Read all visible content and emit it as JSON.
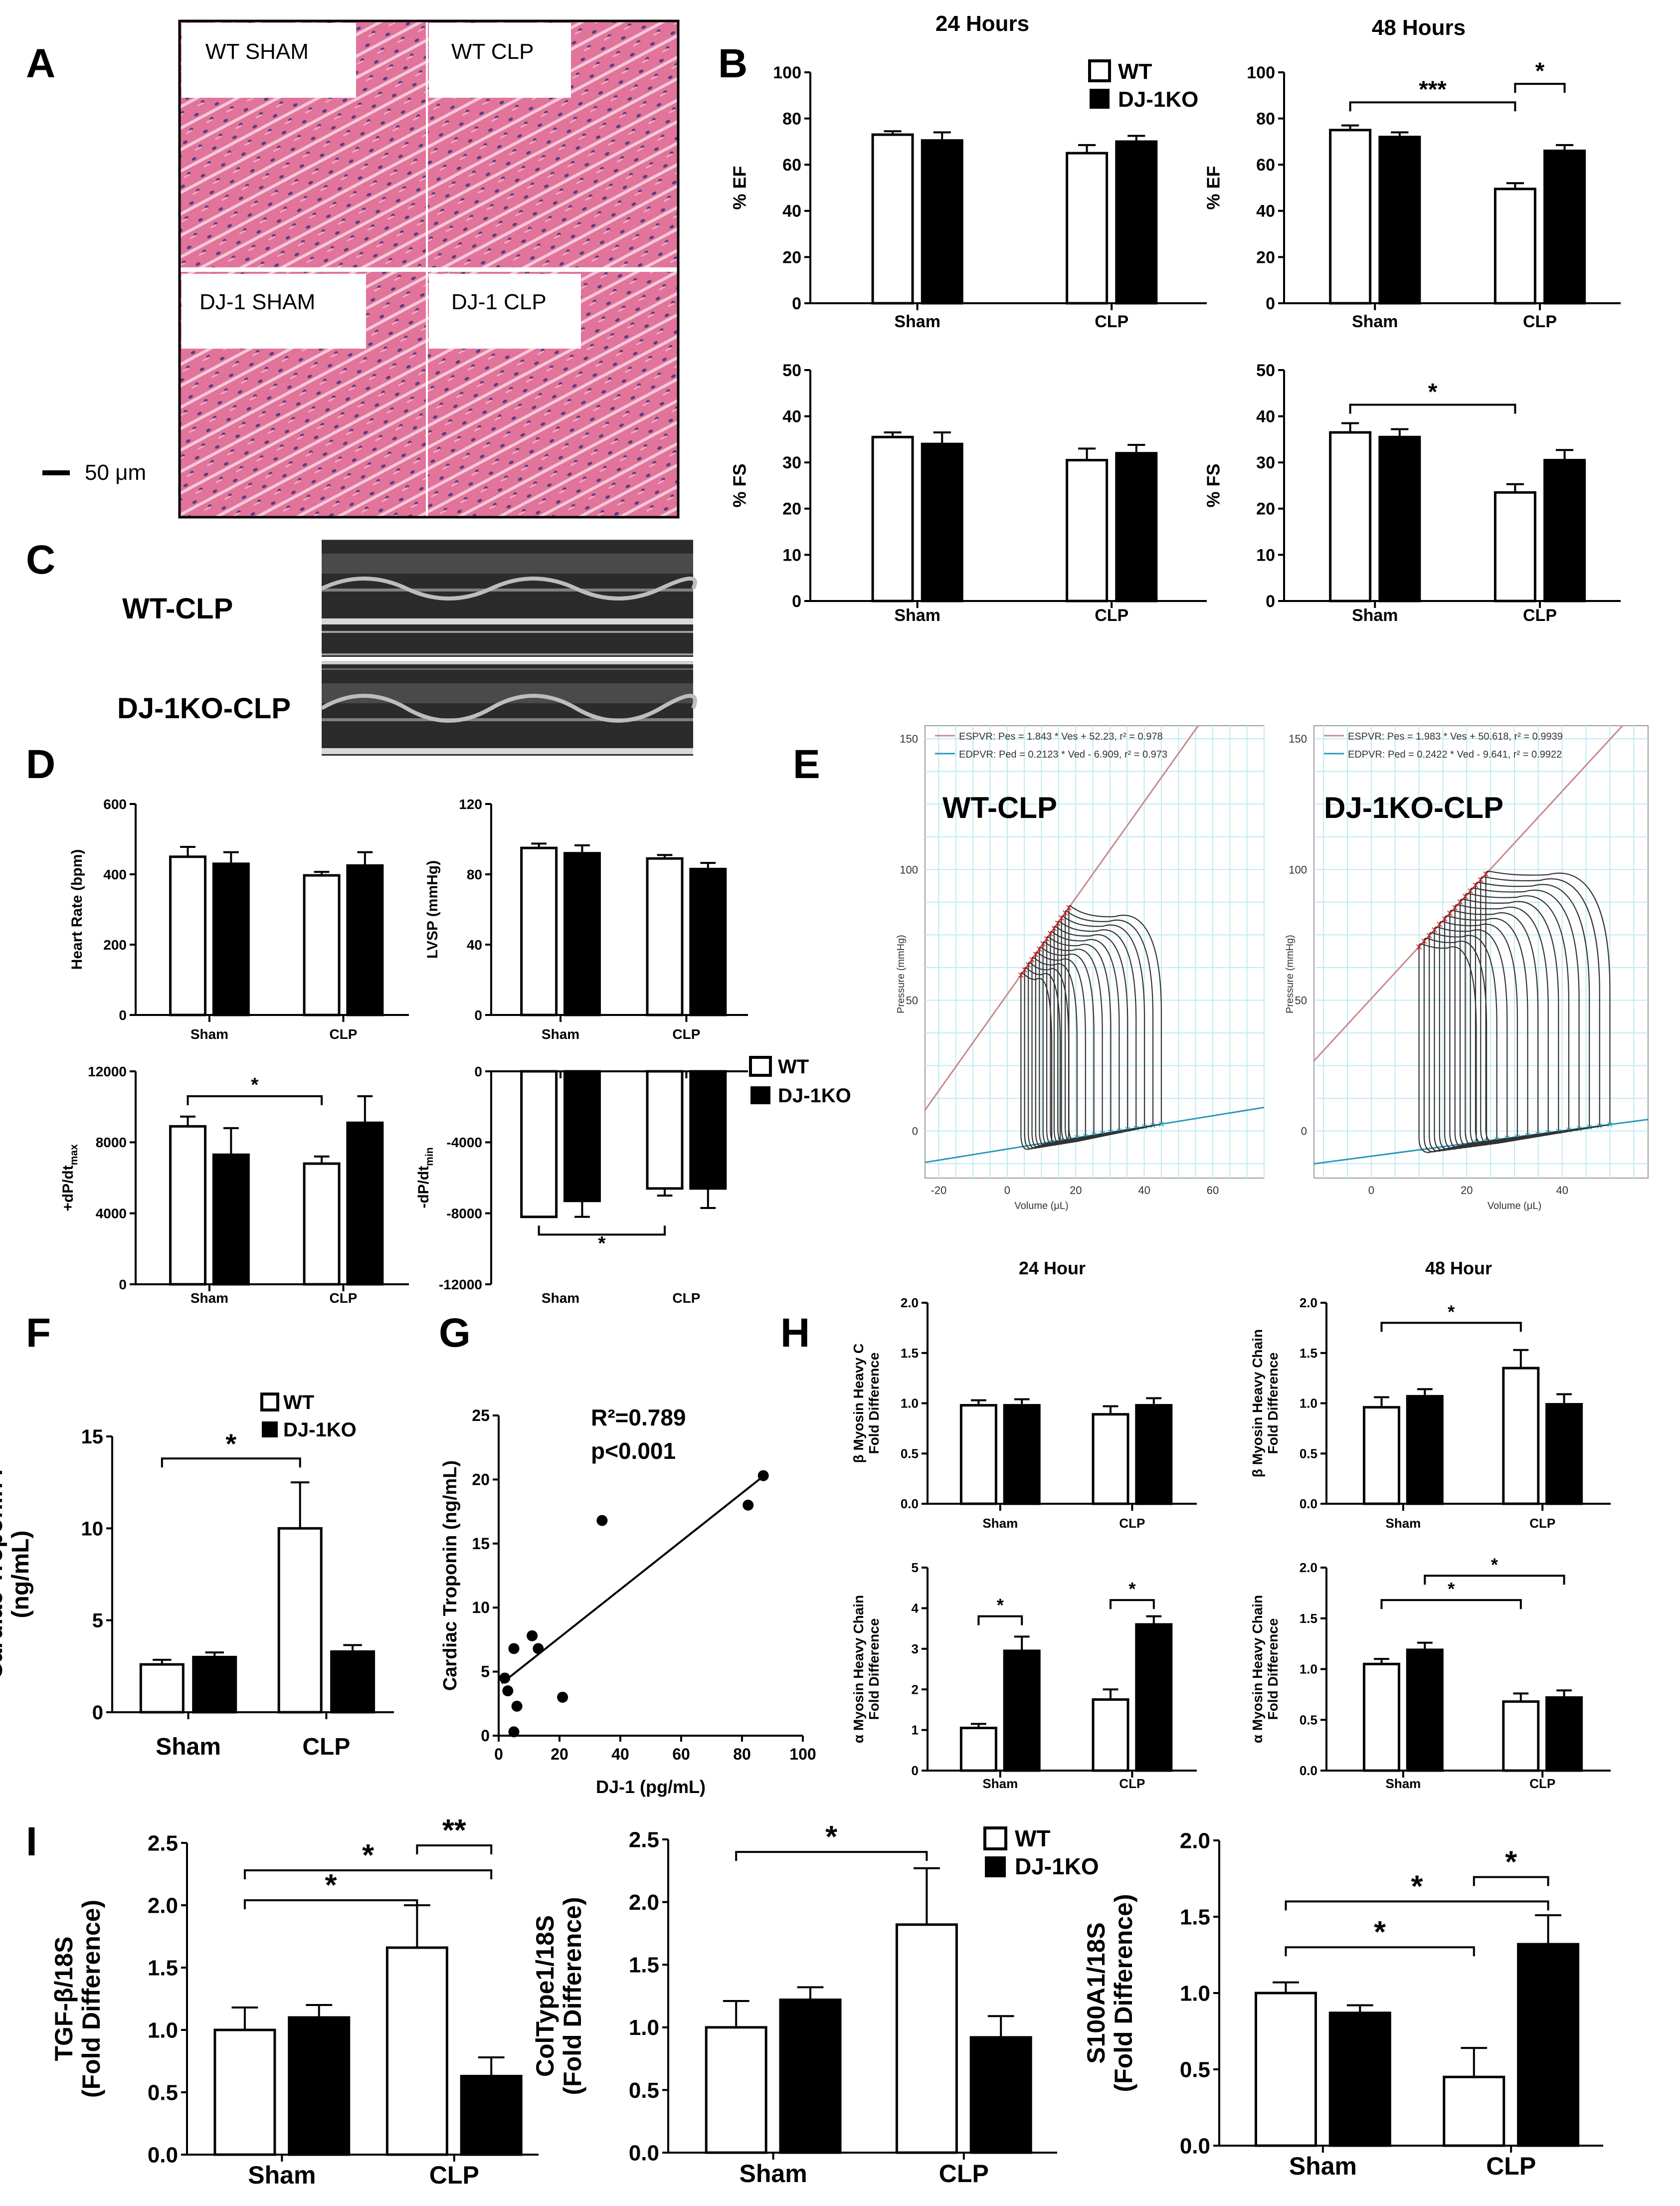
{
  "panel_letters": [
    "A",
    "B",
    "C",
    "D",
    "E",
    "F",
    "G",
    "H",
    "I"
  ],
  "colors": {
    "wt": "#ffffff",
    "ko": "#000000",
    "he_pink": "#e2739a",
    "he_light": "#f3c0d2",
    "nuclei": "#5a3d82",
    "echo_bg": "#2b2b2b",
    "grid": "#bfeaf2",
    "espvr": "#c9878f",
    "edpvr": "#2a97b9",
    "loop": "#333333",
    "esp_marker": "#e01818",
    "edp_marker": "#2fb3d6"
  },
  "legend": {
    "wt": "WT",
    "ko": "DJ-1KO"
  },
  "panel_a": {
    "labels": [
      "WT SHAM",
      "WT CLP",
      "DJ-1 SHAM",
      "DJ-1 CLP"
    ],
    "scale_bar": "50 μm"
  },
  "panel_c": {
    "labels": [
      "WT-CLP",
      "DJ-1KO-CLP"
    ]
  },
  "panel_e": {
    "y_label": "Pressure (mmHg)",
    "x_label": "Volume (μL)",
    "loops": [
      {
        "title": "WT-CLP",
        "espvr": "ESPVR: Pes = 1.843 * Ves + 52.23, r² = 0.978",
        "edpvr": "EDPVR: Ped = 0.2123 * Ved - 6.909, r² = 0.973",
        "ymin": -18,
        "ymax": 155,
        "yticks": [
          0,
          50,
          100,
          150
        ],
        "xmin": -24,
        "xmax": 75,
        "xticks": [
          -20,
          0,
          20,
          40,
          60
        ],
        "es_slope": 1.843,
        "es_int": 52.23,
        "ed_slope": 0.2123,
        "ed_int": -6.909,
        "ves_start": 4,
        "ves_end": 18,
        "ved_start": 13,
        "ved_end": 45,
        "peak_start": 58,
        "peak_end": 82,
        "n_loops": 14
      },
      {
        "title": "DJ-1KO-CLP",
        "espvr": "ESPVR: Pes = 1.983 * Ves + 50.618, r² = 0.9939",
        "edpvr": "EDPVR: Ped = 0.2422 * Ved - 9.641, r² = 0.9922",
        "ymin": -18,
        "ymax": 155,
        "yticks": [
          0,
          50,
          100,
          150
        ],
        "xmin": -12,
        "xmax": 58,
        "xticks": [
          0,
          20,
          40
        ],
        "es_slope": 1.983,
        "es_int": 50.618,
        "ed_slope": 0.2422,
        "ed_int": -9.641,
        "ves_start": 10,
        "ves_end": 24,
        "ved_start": 22,
        "ved_end": 50,
        "peak_start": 70,
        "peak_end": 98,
        "n_loops": 14
      }
    ]
  },
  "chart_data": [
    {
      "id": "B1",
      "type": "bar",
      "title": "24 Hours",
      "categories": [
        "Sham",
        "CLP"
      ],
      "ylabel": "% EF",
      "xlabel": "",
      "ylim": [
        0,
        100
      ],
      "yticks": [
        0,
        20,
        40,
        60,
        80,
        100
      ],
      "series": [
        {
          "name": "WT",
          "values": [
            73,
            65
          ],
          "err": [
            1.5,
            3.5
          ]
        },
        {
          "name": "DJ-1KO",
          "values": [
            70.5,
            70
          ],
          "err": [
            3.5,
            2.5
          ]
        }
      ],
      "sig": []
    },
    {
      "id": "B2",
      "type": "bar",
      "title": "48 Hours",
      "categories": [
        "Sham",
        "CLP"
      ],
      "ylabel": "% EF",
      "xlabel": "",
      "ylim": [
        0,
        100
      ],
      "yticks": [
        0,
        20,
        40,
        60,
        80,
        100
      ],
      "series": [
        {
          "name": "WT",
          "values": [
            75,
            49.5
          ],
          "err": [
            2,
            2.5
          ]
        },
        {
          "name": "DJ-1KO",
          "values": [
            72,
            66
          ],
          "err": [
            2,
            2.5
          ]
        }
      ],
      "sig": [
        {
          "from": [
            0,
            0
          ],
          "to": [
            1,
            0
          ],
          "y": 87,
          "label": "***"
        },
        {
          "from": [
            1,
            0
          ],
          "to": [
            1,
            1
          ],
          "y": 95,
          "label": "*"
        }
      ]
    },
    {
      "id": "B3",
      "type": "bar",
      "title": "",
      "categories": [
        "Sham",
        "CLP"
      ],
      "ylabel": "% FS",
      "xlabel": "",
      "ylim": [
        0,
        50
      ],
      "yticks": [
        0,
        10,
        20,
        30,
        40,
        50
      ],
      "series": [
        {
          "name": "WT",
          "values": [
            35.5,
            30.5
          ],
          "err": [
            1,
            2.5
          ]
        },
        {
          "name": "DJ-1KO",
          "values": [
            34,
            32
          ],
          "err": [
            2.5,
            1.8
          ]
        }
      ],
      "sig": []
    },
    {
      "id": "B4",
      "type": "bar",
      "title": "",
      "categories": [
        "Sham",
        "CLP"
      ],
      "ylabel": "% FS",
      "xlabel": "",
      "ylim": [
        0,
        50
      ],
      "yticks": [
        0,
        10,
        20,
        30,
        40,
        50
      ],
      "series": [
        {
          "name": "WT",
          "values": [
            36.5,
            23.5
          ],
          "err": [
            2,
            1.8
          ]
        },
        {
          "name": "DJ-1KO",
          "values": [
            35.5,
            30.5
          ],
          "err": [
            1.7,
            2.2
          ]
        }
      ],
      "sig": [
        {
          "from": [
            0,
            0
          ],
          "to": [
            1,
            0
          ],
          "y": 42.5,
          "label": "*"
        }
      ]
    },
    {
      "id": "D1",
      "type": "bar",
      "title": "",
      "categories": [
        "Sham",
        "CLP"
      ],
      "ylabel": "Heart Rate (bpm)",
      "xlabel": "",
      "ylim": [
        0,
        600
      ],
      "yticks": [
        0,
        200,
        400,
        600
      ],
      "series": [
        {
          "name": "WT",
          "values": [
            450,
            397
          ],
          "err": [
            28,
            10
          ]
        },
        {
          "name": "DJ-1KO",
          "values": [
            430,
            425
          ],
          "err": [
            33,
            38
          ]
        }
      ],
      "sig": []
    },
    {
      "id": "D2",
      "type": "bar",
      "title": "",
      "categories": [
        "Sham",
        "CLP"
      ],
      "ylabel": "LVSP (mmHg)",
      "xlabel": "",
      "ylim": [
        0,
        120
      ],
      "yticks": [
        0,
        40,
        80,
        120
      ],
      "series": [
        {
          "name": "WT",
          "values": [
            95,
            89
          ],
          "err": [
            2.5,
            2
          ]
        },
        {
          "name": "DJ-1KO",
          "values": [
            92,
            83
          ],
          "err": [
            4.5,
            3.5
          ]
        }
      ],
      "sig": []
    },
    {
      "id": "D3",
      "type": "bar",
      "title": "",
      "categories": [
        "Sham",
        "CLP"
      ],
      "ylabel": "+dP/dtmax",
      "xlabel": "",
      "ylim": [
        0,
        12000
      ],
      "yticks": [
        0,
        4000,
        8000,
        12000
      ],
      "series": [
        {
          "name": "WT",
          "values": [
            8900,
            6800
          ],
          "err": [
            550,
            400
          ]
        },
        {
          "name": "DJ-1KO",
          "values": [
            7300,
            9100
          ],
          "err": [
            1500,
            1500
          ]
        }
      ],
      "sig": [
        {
          "from": [
            0,
            0
          ],
          "to": [
            1,
            0
          ],
          "y": 10600,
          "label": "*"
        }
      ]
    },
    {
      "id": "D4",
      "type": "bar",
      "title": "",
      "categories": [
        "Sham",
        "CLP"
      ],
      "ylabel": "-dP/dtmin",
      "xlabel": "",
      "ylim": [
        -12000,
        0
      ],
      "yticks": [
        -12000,
        -8000,
        -4000,
        0
      ],
      "series": [
        {
          "name": "WT",
          "values": [
            -8200,
            -6600
          ],
          "err": [
            0,
            400
          ]
        },
        {
          "name": "DJ-1KO",
          "values": [
            -7300,
            -6600
          ],
          "err": [
            900,
            1100
          ]
        }
      ],
      "sig": [
        {
          "from": [
            0,
            0
          ],
          "to": [
            1,
            0
          ],
          "y": -9200,
          "label": "*",
          "below": true
        }
      ]
    },
    {
      "id": "F",
      "type": "bar",
      "title": "",
      "categories": [
        "Sham",
        "CLP"
      ],
      "ylabel": "Cardiac Troponin I (ng/mL)",
      "xlabel": "",
      "ylim": [
        0,
        15
      ],
      "yticks": [
        0,
        5,
        10,
        15
      ],
      "series": [
        {
          "name": "WT",
          "values": [
            2.6,
            10
          ],
          "err": [
            0.25,
            2.5
          ]
        },
        {
          "name": "DJ-1KO",
          "values": [
            3,
            3.3
          ],
          "err": [
            0.25,
            0.35
          ]
        }
      ],
      "sig": [
        {
          "from": [
            0,
            0
          ],
          "to": [
            1,
            0
          ],
          "y": 13.8,
          "label": "*"
        }
      ]
    },
    {
      "id": "G",
      "type": "scatter",
      "title": "",
      "xlabel": "DJ-1 (pg/mL)",
      "ylabel": "Cardiac Troponin (ng/mL)",
      "xlim": [
        0,
        100
      ],
      "ylim": [
        0,
        25
      ],
      "xticks": [
        0,
        20,
        40,
        60,
        80,
        100
      ],
      "yticks": [
        0,
        5,
        10,
        15,
        20,
        25
      ],
      "points": [
        [
          2,
          4.5
        ],
        [
          3,
          3.5
        ],
        [
          5,
          6.8
        ],
        [
          5,
          0.3
        ],
        [
          6,
          2.3
        ],
        [
          11,
          7.8
        ],
        [
          13,
          6.8
        ],
        [
          21,
          3
        ],
        [
          34,
          16.8
        ],
        [
          82,
          18
        ],
        [
          87,
          20.3
        ]
      ],
      "fit": {
        "slope": 0.188,
        "intercept": 3.9,
        "x0": 1,
        "x1": 87
      },
      "annotation": [
        "R²=0.789",
        "p<0.001"
      ]
    },
    {
      "id": "H1",
      "type": "bar",
      "title": "24 Hour",
      "categories": [
        "Sham",
        "CLP"
      ],
      "ylabel": "β Myosin Heavy C Fold Difference",
      "xlabel": "",
      "ylim": [
        0,
        2
      ],
      "yticks": [
        0,
        0.5,
        1,
        1.5,
        2
      ],
      "series": [
        {
          "name": "WT",
          "values": [
            0.98,
            0.89
          ],
          "err": [
            0.05,
            0.08
          ]
        },
        {
          "name": "DJ-1KO",
          "values": [
            0.98,
            0.98
          ],
          "err": [
            0.06,
            0.07
          ]
        }
      ],
      "sig": []
    },
    {
      "id": "H2",
      "type": "bar",
      "title": "48 Hour",
      "categories": [
        "Sham",
        "CLP"
      ],
      "ylabel": "β Myosin Heavy Chain Fold Difference",
      "xlabel": "",
      "ylim": [
        0,
        2
      ],
      "yticks": [
        0,
        0.5,
        1,
        1.5,
        2
      ],
      "series": [
        {
          "name": "WT",
          "values": [
            0.96,
            1.35
          ],
          "err": [
            0.1,
            0.18
          ]
        },
        {
          "name": "DJ-1KO",
          "values": [
            1.07,
            0.99
          ],
          "err": [
            0.07,
            0.1
          ]
        }
      ],
      "sig": [
        {
          "from": [
            0,
            0
          ],
          "to": [
            1,
            0
          ],
          "y": 1.8,
          "label": "*"
        }
      ]
    },
    {
      "id": "H3",
      "type": "bar",
      "title": "",
      "categories": [
        "Sham",
        "CLP"
      ],
      "ylabel": "α Myosin Heavy Chain Fold Difference",
      "xlabel": "",
      "ylim": [
        0,
        5
      ],
      "yticks": [
        0,
        1,
        2,
        3,
        4,
        5
      ],
      "series": [
        {
          "name": "WT",
          "values": [
            1.05,
            1.75
          ],
          "err": [
            0.1,
            0.25
          ]
        },
        {
          "name": "DJ-1KO",
          "values": [
            2.95,
            3.6
          ],
          "err": [
            0.35,
            0.2
          ]
        }
      ],
      "sig": [
        {
          "from": [
            0,
            0
          ],
          "to": [
            0,
            1
          ],
          "y": 3.8,
          "label": "*"
        },
        {
          "from": [
            1,
            0
          ],
          "to": [
            1,
            1
          ],
          "y": 4.2,
          "label": "*"
        }
      ]
    },
    {
      "id": "H4",
      "type": "bar",
      "title": "",
      "categories": [
        "Sham",
        "CLP"
      ],
      "ylabel": "α Myosin Heavy Chain Fold Difference",
      "xlabel": "",
      "ylim": [
        0,
        2
      ],
      "yticks": [
        0,
        0.5,
        1,
        1.5,
        2
      ],
      "series": [
        {
          "name": "WT",
          "values": [
            1.05,
            0.68
          ],
          "err": [
            0.05,
            0.08
          ]
        },
        {
          "name": "DJ-1KO",
          "values": [
            1.19,
            0.72
          ],
          "err": [
            0.07,
            0.07
          ]
        }
      ],
      "sig": [
        {
          "from": [
            0,
            0
          ],
          "to": [
            1,
            0
          ],
          "y": 1.68,
          "label": "*"
        },
        {
          "from": [
            0,
            1
          ],
          "to": [
            1,
            1
          ],
          "y": 1.92,
          "label": "*"
        }
      ]
    },
    {
      "id": "I1",
      "type": "bar",
      "title": "",
      "categories": [
        "Sham",
        "CLP"
      ],
      "ylabel": "TGF-β/18S (Fold Difference)",
      "xlabel": "",
      "ylim": [
        0,
        2.5
      ],
      "yticks": [
        0,
        0.5,
        1,
        1.5,
        2,
        2.5
      ],
      "series": [
        {
          "name": "WT",
          "values": [
            1,
            1.66
          ],
          "err": [
            0.18,
            0.34
          ]
        },
        {
          "name": "DJ-1KO",
          "values": [
            1.1,
            0.63
          ],
          "err": [
            0.1,
            0.15
          ]
        }
      ],
      "sig": [
        {
          "from": [
            0,
            0
          ],
          "to": [
            1,
            0
          ],
          "y": 2.04,
          "label": "*"
        },
        {
          "from": [
            0,
            0
          ],
          "to": [
            1,
            1
          ],
          "y": 2.28,
          "label": "*"
        },
        {
          "from": [
            1,
            0
          ],
          "to": [
            1,
            1
          ],
          "y": 2.48,
          "label": "**"
        }
      ]
    },
    {
      "id": "I2",
      "type": "bar",
      "title": "",
      "categories": [
        "Sham",
        "CLP"
      ],
      "ylabel": "ColType1/18S (Fold Difference)",
      "xlabel": "",
      "ylim": [
        0,
        2.5
      ],
      "yticks": [
        0,
        0.5,
        1,
        1.5,
        2,
        2.5
      ],
      "series": [
        {
          "name": "WT",
          "values": [
            1,
            1.82
          ],
          "err": [
            0.21,
            0.45
          ]
        },
        {
          "name": "DJ-1KO",
          "values": [
            1.22,
            0.92
          ],
          "err": [
            0.1,
            0.17
          ]
        }
      ],
      "sig": [
        {
          "from": [
            0,
            0
          ],
          "to": [
            1,
            0
          ],
          "y": 2.4,
          "label": "*"
        }
      ]
    },
    {
      "id": "I3",
      "type": "bar",
      "title": "",
      "categories": [
        "Sham",
        "CLP"
      ],
      "ylabel": "S100A1/18S (Fold Difference)",
      "xlabel": "",
      "ylim": [
        0,
        2
      ],
      "yticks": [
        0,
        0.5,
        1,
        1.5,
        2
      ],
      "series": [
        {
          "name": "WT",
          "values": [
            1,
            0.45
          ],
          "err": [
            0.07,
            0.19
          ]
        },
        {
          "name": "DJ-1KO",
          "values": [
            0.87,
            1.32
          ],
          "err": [
            0.05,
            0.19
          ]
        }
      ],
      "sig": [
        {
          "from": [
            0,
            0
          ],
          "to": [
            1,
            0
          ],
          "y": 1.3,
          "label": "*"
        },
        {
          "from": [
            0,
            0
          ],
          "to": [
            1,
            1
          ],
          "y": 1.6,
          "label": "*"
        },
        {
          "from": [
            1,
            0
          ],
          "to": [
            1,
            1
          ],
          "y": 1.76,
          "label": "*"
        }
      ]
    }
  ]
}
